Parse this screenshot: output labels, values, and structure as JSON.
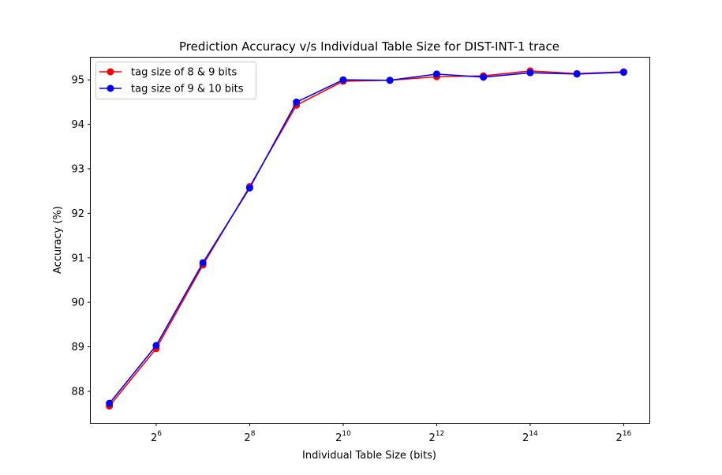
{
  "chart_data": {
    "type": "line",
    "title": "Prediction Accuracy v/s Individual Table Size for DIST-INT-1 trace",
    "xlabel": "Individual Table Size (bits)",
    "ylabel": "Accuracy (%)",
    "x_scale": "log2",
    "x": [
      32,
      64,
      128,
      256,
      512,
      1024,
      2048,
      4096,
      8192,
      16384,
      32768,
      65536
    ],
    "x_ticks": [
      {
        "value": 64,
        "base": "2",
        "exp": "6"
      },
      {
        "value": 256,
        "base": "2",
        "exp": "8"
      },
      {
        "value": 1024,
        "base": "2",
        "exp": "10"
      },
      {
        "value": 4096,
        "base": "2",
        "exp": "12"
      },
      {
        "value": 16384,
        "base": "2",
        "exp": "14"
      },
      {
        "value": 65536,
        "base": "2",
        "exp": "16"
      }
    ],
    "xlim_log2": [
      4.6,
      16.55
    ],
    "y_ticks": [
      88,
      89,
      90,
      91,
      92,
      93,
      94,
      95
    ],
    "ylim": [
      87.29,
      95.5
    ],
    "grid": false,
    "legend_position": "upper-left",
    "series": [
      {
        "name": "tag size of 8 & 9 bits",
        "color": "#ff0000",
        "values": [
          87.67,
          88.96,
          90.84,
          92.6,
          94.43,
          94.97,
          94.99,
          95.07,
          95.09,
          95.2,
          95.14,
          95.18
        ]
      },
      {
        "name": "tag size of 9 & 10 bits",
        "color": "#0000ff",
        "values": [
          87.73,
          89.03,
          90.89,
          92.57,
          94.5,
          95.0,
          94.99,
          95.13,
          95.06,
          95.16,
          95.13,
          95.17
        ]
      }
    ]
  }
}
